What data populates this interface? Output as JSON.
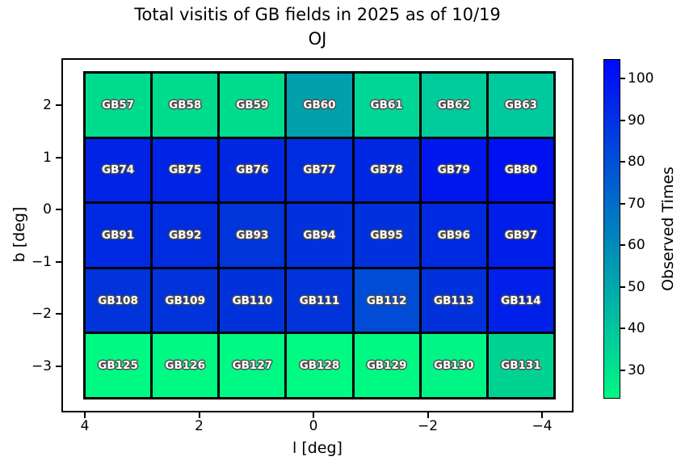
{
  "title": {
    "line1": "Total visitis of GB fields in 2025 as of 10/19",
    "line2": "OJ"
  },
  "axes": {
    "xlabel": "l [deg]",
    "ylabel": "b [deg]",
    "x_tick_labels": [
      "4",
      "2",
      "0",
      "−2",
      "−4"
    ],
    "y_tick_labels": [
      "2",
      "1",
      "0",
      "−1",
      "−2",
      "−3"
    ]
  },
  "colorbar": {
    "label": "Observed Times",
    "tick_labels": [
      "30",
      "40",
      "50",
      "60",
      "70",
      "80",
      "90",
      "100"
    ],
    "top_color": "#0107fb",
    "bottom_color": "#00f785",
    "value_min": 23,
    "value_max": 105
  },
  "grid": {
    "cells": [
      {
        "id": "GB57",
        "color": "#00dc8e",
        "value": 34
      },
      {
        "id": "GB58",
        "color": "#00dc8e",
        "value": 34
      },
      {
        "id": "GB59",
        "color": "#00dc8e",
        "value": 34
      },
      {
        "id": "GB60",
        "color": "#00a1ac",
        "value": 53
      },
      {
        "id": "GB61",
        "color": "#00d794",
        "value": 36
      },
      {
        "id": "GB62",
        "color": "#00cc9b",
        "value": 40
      },
      {
        "id": "GB63",
        "color": "#00ca9d",
        "value": 40
      },
      {
        "id": "GB74",
        "color": "#0023e6",
        "value": 93
      },
      {
        "id": "GB75",
        "color": "#0024e5",
        "value": 93
      },
      {
        "id": "GB76",
        "color": "#0028e2",
        "value": 92
      },
      {
        "id": "GB77",
        "color": "#002ce0",
        "value": 90
      },
      {
        "id": "GB78",
        "color": "#0028e2",
        "value": 92
      },
      {
        "id": "GB79",
        "color": "#0018ee",
        "value": 97
      },
      {
        "id": "GB80",
        "color": "#0011f1",
        "value": 99
      },
      {
        "id": "GB91",
        "color": "#002ae1",
        "value": 91
      },
      {
        "id": "GB92",
        "color": "#002ce0",
        "value": 91
      },
      {
        "id": "GB93",
        "color": "#0035da",
        "value": 88
      },
      {
        "id": "GB94",
        "color": "#0031dd",
        "value": 89
      },
      {
        "id": "GB95",
        "color": "#0031dd",
        "value": 89
      },
      {
        "id": "GB96",
        "color": "#0029e2",
        "value": 92
      },
      {
        "id": "GB97",
        "color": "#001eea",
        "value": 95
      },
      {
        "id": "GB108",
        "color": "#0034da",
        "value": 88
      },
      {
        "id": "GB109",
        "color": "#0034da",
        "value": 88
      },
      {
        "id": "GB110",
        "color": "#0032dc",
        "value": 89
      },
      {
        "id": "GB111",
        "color": "#0034da",
        "value": 88
      },
      {
        "id": "GB112",
        "color": "#004cd6",
        "value": 79
      },
      {
        "id": "GB113",
        "color": "#0031dd",
        "value": 89
      },
      {
        "id": "GB114",
        "color": "#0020e9",
        "value": 95
      },
      {
        "id": "GB125",
        "color": "#00f983",
        "value": 25
      },
      {
        "id": "GB126",
        "color": "#00f983",
        "value": 25
      },
      {
        "id": "GB127",
        "color": "#00f884",
        "value": 25
      },
      {
        "id": "GB128",
        "color": "#00fa82",
        "value": 25
      },
      {
        "id": "GB129",
        "color": "#00f983",
        "value": 25
      },
      {
        "id": "GB130",
        "color": "#00f586",
        "value": 26
      },
      {
        "id": "GB131",
        "color": "#00d391",
        "value": 38
      }
    ]
  },
  "chart_data": {
    "type": "heatmap",
    "title": "Total visitis of GB fields in 2025 as of 10/19 OJ",
    "xlabel": "l [deg]",
    "ylabel": "b [deg]",
    "x_ticks": [
      4,
      2,
      0,
      -2,
      -4
    ],
    "y_ticks": [
      2,
      1,
      0,
      -1,
      -2,
      -3
    ],
    "x_centers_deg": [
      3.5,
      2.3,
      1.2,
      0.0,
      -1.2,
      -2.3,
      -3.5
    ],
    "y_centers_deg": [
      2.0,
      0.75,
      -0.5,
      -1.8,
      -3.05
    ],
    "colorbar_label": "Observed Times",
    "colorbar_range": [
      23,
      105
    ],
    "colormap": "winter_r (green=low, blue=high)",
    "rows": [
      {
        "fields": [
          "GB57",
          "GB58",
          "GB59",
          "GB60",
          "GB61",
          "GB62",
          "GB63"
        ],
        "observed_times_est": [
          34,
          34,
          34,
          53,
          36,
          40,
          40
        ]
      },
      {
        "fields": [
          "GB74",
          "GB75",
          "GB76",
          "GB77",
          "GB78",
          "GB79",
          "GB80"
        ],
        "observed_times_est": [
          93,
          93,
          92,
          90,
          92,
          97,
          99
        ]
      },
      {
        "fields": [
          "GB91",
          "GB92",
          "GB93",
          "GB94",
          "GB95",
          "GB96",
          "GB97"
        ],
        "observed_times_est": [
          91,
          91,
          88,
          89,
          89,
          92,
          95
        ]
      },
      {
        "fields": [
          "GB108",
          "GB109",
          "GB110",
          "GB111",
          "GB112",
          "GB113",
          "GB114"
        ],
        "observed_times_est": [
          88,
          88,
          89,
          88,
          79,
          89,
          95
        ]
      },
      {
        "fields": [
          "GB125",
          "GB126",
          "GB127",
          "GB128",
          "GB129",
          "GB130",
          "GB131"
        ],
        "observed_times_est": [
          25,
          25,
          25,
          25,
          25,
          26,
          38
        ]
      }
    ]
  }
}
